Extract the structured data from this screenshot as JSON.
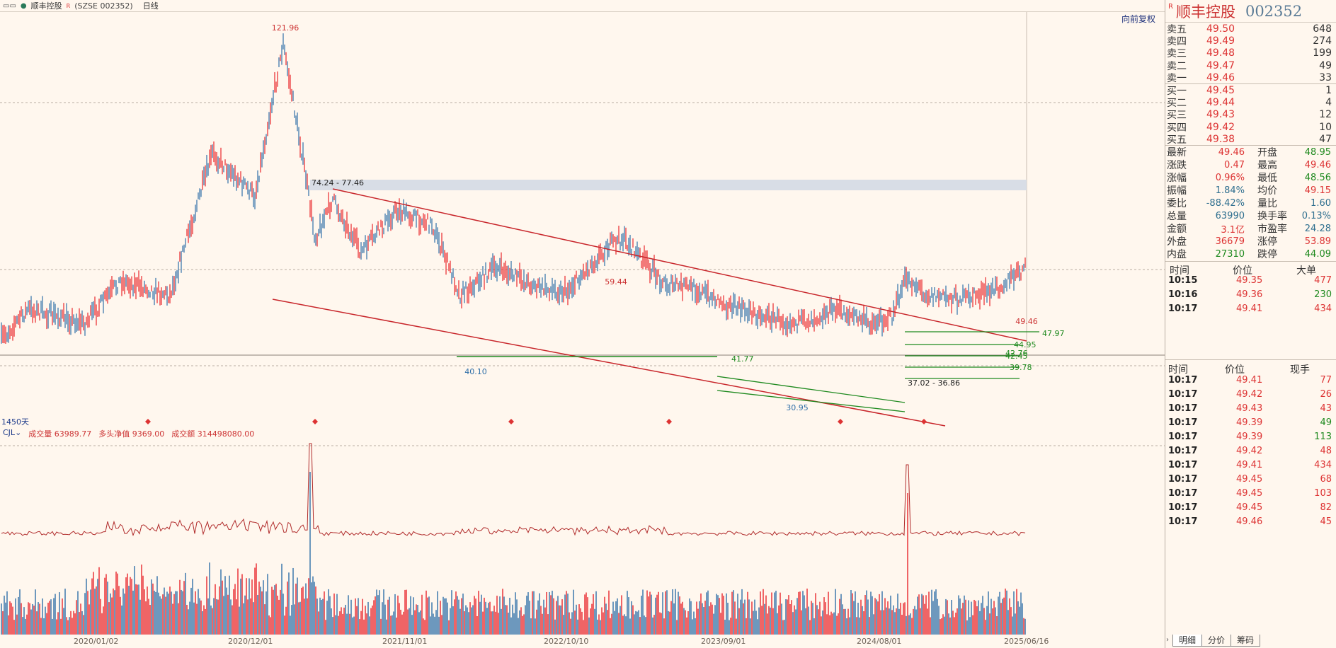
{
  "topbar": {
    "icon": "window-tile-icon",
    "stock_name": "顺丰控股",
    "marker": "R",
    "symbol": "(SZSE 002352)",
    "period": "日线"
  },
  "chart": {
    "back_button": "向前复权",
    "day_count": "1450天",
    "price_labels": {
      "peak": "121.96",
      "range1": "74.24 - 77.46",
      "p59": "59.44",
      "p40": "40.10",
      "p41": "41.77",
      "p30": "30.95",
      "range2": "37.02 - 36.86",
      "last": "49.46",
      "p47": "47.97",
      "p44": "44.95",
      "p42a": "42.76",
      "p42b": "42.45",
      "p39": "39.78"
    },
    "x_labels": [
      "2020/01/02",
      "2020/12/01",
      "2021/11/01",
      "2022/10/10",
      "2023/09/01",
      "2024/08/01",
      "2025/06/16"
    ],
    "colors": {
      "up": "#e8262b",
      "down": "#2f6fa8",
      "channel": "#c8262b",
      "support": "#1f8a1f",
      "zone": "#d8dde6"
    }
  },
  "volume": {
    "indicator": "CJL",
    "vol_label": "成交量",
    "vol_value": "63989.77",
    "net_label": "多头净值",
    "net_value": "9369.00",
    "amt_label": "成交额",
    "amt_value": "314498080.00"
  },
  "panel": {
    "marker": "R",
    "name": "顺丰控股",
    "code": "002352",
    "asks": [
      {
        "label": "卖五",
        "price": "49.50",
        "vol": "648"
      },
      {
        "label": "卖四",
        "price": "49.49",
        "vol": "274"
      },
      {
        "label": "卖三",
        "price": "49.48",
        "vol": "199"
      },
      {
        "label": "卖二",
        "price": "49.47",
        "vol": "49"
      },
      {
        "label": "卖一",
        "price": "49.46",
        "vol": "33"
      }
    ],
    "bids": [
      {
        "label": "买一",
        "price": "49.45",
        "vol": "1"
      },
      {
        "label": "买二",
        "price": "49.44",
        "vol": "4"
      },
      {
        "label": "买三",
        "price": "49.43",
        "vol": "12"
      },
      {
        "label": "买四",
        "price": "49.42",
        "vol": "10"
      },
      {
        "label": "买五",
        "price": "49.38",
        "vol": "47"
      }
    ],
    "quote_left": [
      {
        "label": "最新",
        "value": "49.46",
        "color": "red"
      },
      {
        "label": "涨跌",
        "value": "0.47",
        "color": "red"
      },
      {
        "label": "涨幅",
        "value": "0.96%",
        "color": "red"
      },
      {
        "label": "振幅",
        "value": "1.84%",
        "color": "teal"
      },
      {
        "label": "委比",
        "value": "-88.42%",
        "color": "teal"
      },
      {
        "label": "总量",
        "value": "63990",
        "color": "teal"
      },
      {
        "label": "金额",
        "value": "3.1亿",
        "color": "red"
      },
      {
        "label": "外盘",
        "value": "36679",
        "color": "red"
      },
      {
        "label": "内盘",
        "value": "27310",
        "color": "green"
      }
    ],
    "quote_right": [
      {
        "label": "开盘",
        "value": "48.95",
        "color": "green"
      },
      {
        "label": "最高",
        "value": "49.46",
        "color": "red"
      },
      {
        "label": "最低",
        "value": "48.56",
        "color": "green"
      },
      {
        "label": "均价",
        "value": "49.15",
        "color": "red"
      },
      {
        "label": "量比",
        "value": "1.60",
        "color": "teal"
      },
      {
        "label": "换手率",
        "value": "0.13%",
        "color": "teal"
      },
      {
        "label": "市盈率",
        "value": "24.28",
        "color": "teal"
      },
      {
        "label": "涨停",
        "value": "53.89",
        "color": "red"
      },
      {
        "label": "跌停",
        "value": "44.09",
        "color": "green"
      }
    ],
    "big_orders": {
      "headers": [
        "时间",
        "价位",
        "大单"
      ],
      "rows": [
        {
          "time": "10:15",
          "price": "49.35",
          "vol": "477",
          "color": "red"
        },
        {
          "time": "10:16",
          "price": "49.36",
          "vol": "230",
          "color": "green"
        },
        {
          "time": "10:17",
          "price": "49.41",
          "vol": "434",
          "color": "red"
        }
      ]
    },
    "ticks": {
      "headers": [
        "时间",
        "价位",
        "现手"
      ],
      "rows": [
        {
          "time": "10:17",
          "price": "49.41",
          "vol": "77",
          "color": "red"
        },
        {
          "time": "10:17",
          "price": "49.42",
          "vol": "26",
          "color": "red"
        },
        {
          "time": "10:17",
          "price": "49.43",
          "vol": "43",
          "color": "red"
        },
        {
          "time": "10:17",
          "price": "49.39",
          "vol": "49",
          "color": "green"
        },
        {
          "time": "10:17",
          "price": "49.39",
          "vol": "113",
          "color": "green"
        },
        {
          "time": "10:17",
          "price": "49.42",
          "vol": "48",
          "color": "red"
        },
        {
          "time": "10:17",
          "price": "49.41",
          "vol": "434",
          "color": "red"
        },
        {
          "time": "10:17",
          "price": "49.45",
          "vol": "68",
          "color": "red"
        },
        {
          "time": "10:17",
          "price": "49.45",
          "vol": "103",
          "color": "red"
        },
        {
          "time": "10:17",
          "price": "49.45",
          "vol": "82",
          "color": "red"
        },
        {
          "time": "10:17",
          "price": "49.46",
          "vol": "45",
          "color": "red"
        }
      ]
    },
    "tabs": [
      "明细",
      "分价",
      "筹码"
    ]
  }
}
